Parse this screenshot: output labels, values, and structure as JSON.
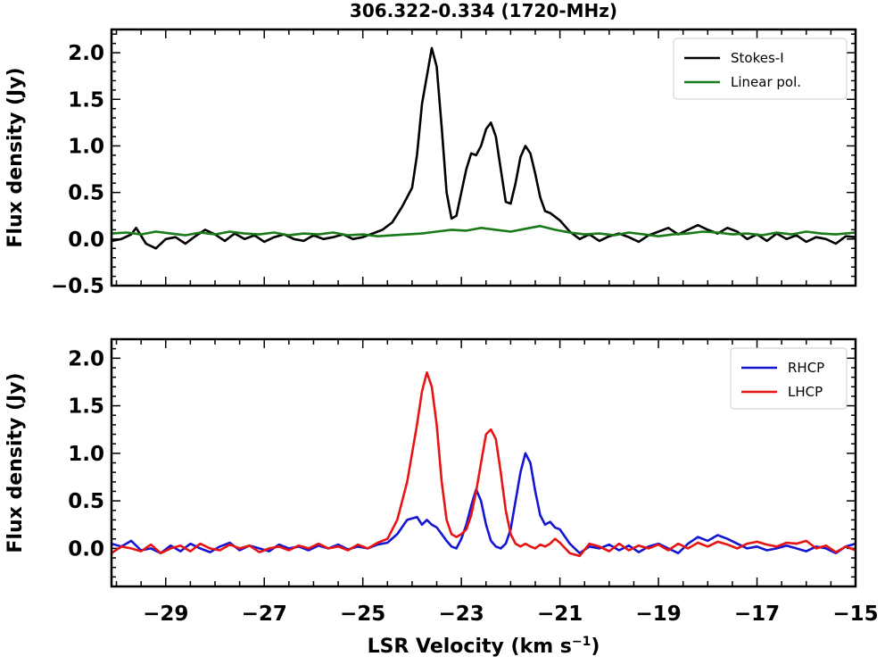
{
  "figure": {
    "title": "306.322-0.334 (1720-MHz)",
    "xlabel": "LSR Velocity (km s",
    "xlabel_sup": "−1",
    "xlabel_end": ")"
  },
  "chart_data": [
    {
      "type": "line",
      "ylabel": "Flux density (Jy)",
      "xlim": [
        -30.1,
        -15
      ],
      "ylim": [
        -0.5,
        2.25
      ],
      "yticks": [
        -0.5,
        0.0,
        0.5,
        1.0,
        1.5,
        2.0
      ],
      "ytick_labels": [
        "−0.5",
        "0.0",
        "0.5",
        "1.0",
        "1.5",
        "2.0"
      ],
      "legend_position": "top-right",
      "series": [
        {
          "name": "Stokes-I",
          "color": "#000000",
          "x": [
            -30.1,
            -29.9,
            -29.7,
            -29.6,
            -29.4,
            -29.2,
            -29.0,
            -28.8,
            -28.6,
            -28.4,
            -28.2,
            -28.0,
            -27.8,
            -27.6,
            -27.4,
            -27.2,
            -27.0,
            -26.8,
            -26.6,
            -26.4,
            -26.2,
            -26.0,
            -25.8,
            -25.6,
            -25.4,
            -25.2,
            -25.0,
            -24.8,
            -24.6,
            -24.4,
            -24.2,
            -24.0,
            -23.9,
            -23.8,
            -23.7,
            -23.6,
            -23.5,
            -23.4,
            -23.3,
            -23.2,
            -23.1,
            -23.0,
            -22.9,
            -22.8,
            -22.7,
            -22.6,
            -22.5,
            -22.4,
            -22.3,
            -22.2,
            -22.1,
            -22.0,
            -21.9,
            -21.8,
            -21.7,
            -21.6,
            -21.5,
            -21.4,
            -21.3,
            -21.2,
            -21.0,
            -20.8,
            -20.6,
            -20.4,
            -20.2,
            -20.0,
            -19.8,
            -19.6,
            -19.4,
            -19.2,
            -19.0,
            -18.8,
            -18.6,
            -18.4,
            -18.2,
            -18.0,
            -17.8,
            -17.6,
            -17.4,
            -17.2,
            -17.0,
            -16.8,
            -16.6,
            -16.4,
            -16.2,
            -16.0,
            -15.8,
            -15.6,
            -15.4,
            -15.2,
            -15.0
          ],
          "y": [
            -0.02,
            0.0,
            0.05,
            0.12,
            -0.05,
            -0.1,
            0.0,
            0.02,
            -0.05,
            0.03,
            0.1,
            0.05,
            -0.02,
            0.06,
            0.0,
            0.04,
            -0.03,
            0.02,
            0.05,
            0.0,
            -0.02,
            0.04,
            0.0,
            0.02,
            0.05,
            0.0,
            0.02,
            0.06,
            0.1,
            0.18,
            0.35,
            0.55,
            0.9,
            1.45,
            1.75,
            2.05,
            1.85,
            1.2,
            0.5,
            0.22,
            0.25,
            0.5,
            0.75,
            0.92,
            0.9,
            1.0,
            1.18,
            1.25,
            1.1,
            0.75,
            0.4,
            0.38,
            0.6,
            0.88,
            1.0,
            0.92,
            0.7,
            0.45,
            0.3,
            0.28,
            0.2,
            0.08,
            0.0,
            0.05,
            -0.02,
            0.03,
            0.06,
            0.02,
            -0.03,
            0.04,
            0.08,
            0.12,
            0.05,
            0.1,
            0.15,
            0.1,
            0.06,
            0.12,
            0.08,
            0.0,
            0.05,
            -0.02,
            0.06,
            0.0,
            0.04,
            -0.03,
            0.02,
            0.0,
            -0.05,
            0.03,
            0.02
          ]
        },
        {
          "name": "Linear pol.",
          "color": "#1a7a1a",
          "x": [
            -30.1,
            -29.8,
            -29.5,
            -29.2,
            -28.9,
            -28.6,
            -28.3,
            -28.0,
            -27.7,
            -27.4,
            -27.1,
            -26.8,
            -26.5,
            -26.2,
            -25.9,
            -25.6,
            -25.3,
            -25.0,
            -24.7,
            -24.4,
            -24.1,
            -23.8,
            -23.5,
            -23.2,
            -22.9,
            -22.6,
            -22.3,
            -22.0,
            -21.7,
            -21.4,
            -21.1,
            -20.8,
            -20.5,
            -20.2,
            -19.9,
            -19.6,
            -19.3,
            -19.0,
            -18.7,
            -18.4,
            -18.1,
            -17.8,
            -17.5,
            -17.2,
            -16.9,
            -16.6,
            -16.3,
            -16.0,
            -15.7,
            -15.4,
            -15.0
          ],
          "y": [
            0.06,
            0.07,
            0.05,
            0.08,
            0.06,
            0.04,
            0.07,
            0.05,
            0.08,
            0.06,
            0.05,
            0.07,
            0.04,
            0.06,
            0.05,
            0.07,
            0.04,
            0.05,
            0.03,
            0.04,
            0.05,
            0.06,
            0.08,
            0.1,
            0.09,
            0.12,
            0.1,
            0.08,
            0.11,
            0.14,
            0.1,
            0.07,
            0.05,
            0.06,
            0.04,
            0.07,
            0.05,
            0.03,
            0.05,
            0.06,
            0.08,
            0.07,
            0.05,
            0.06,
            0.04,
            0.07,
            0.05,
            0.08,
            0.06,
            0.05,
            0.07
          ]
        }
      ]
    },
    {
      "type": "line",
      "ylabel": "Flux density (Jy)",
      "xlim": [
        -30.1,
        -15
      ],
      "ylim": [
        -0.4,
        2.2
      ],
      "yticks": [
        0.0,
        0.5,
        1.0,
        1.5,
        2.0
      ],
      "ytick_labels": [
        "0.0",
        "0.5",
        "1.0",
        "1.5",
        "2.0"
      ],
      "xticks": [
        -29,
        -27,
        -25,
        -23,
        -21,
        -19,
        -17,
        -15
      ],
      "xtick_labels": [
        "−29",
        "−27",
        "−25",
        "−23",
        "−21",
        "−19",
        "−17",
        "−15"
      ],
      "legend_position": "top-right",
      "series": [
        {
          "name": "RHCP",
          "color": "#1515d4",
          "x": [
            -30.1,
            -29.9,
            -29.7,
            -29.5,
            -29.3,
            -29.1,
            -28.9,
            -28.7,
            -28.5,
            -28.3,
            -28.1,
            -27.9,
            -27.7,
            -27.5,
            -27.3,
            -27.1,
            -26.9,
            -26.7,
            -26.5,
            -26.3,
            -26.1,
            -25.9,
            -25.7,
            -25.5,
            -25.3,
            -25.1,
            -24.9,
            -24.7,
            -24.5,
            -24.3,
            -24.1,
            -23.9,
            -23.8,
            -23.7,
            -23.6,
            -23.5,
            -23.4,
            -23.3,
            -23.2,
            -23.1,
            -23.0,
            -22.9,
            -22.8,
            -22.7,
            -22.6,
            -22.5,
            -22.4,
            -22.3,
            -22.2,
            -22.1,
            -22.0,
            -21.9,
            -21.8,
            -21.7,
            -21.6,
            -21.5,
            -21.4,
            -21.3,
            -21.2,
            -21.1,
            -21.0,
            -20.8,
            -20.6,
            -20.4,
            -20.2,
            -20.0,
            -19.8,
            -19.6,
            -19.4,
            -19.2,
            -19.0,
            -18.8,
            -18.6,
            -18.4,
            -18.2,
            -18.0,
            -17.8,
            -17.6,
            -17.4,
            -17.2,
            -17.0,
            -16.8,
            -16.6,
            -16.4,
            -16.2,
            -16.0,
            -15.8,
            -15.6,
            -15.4,
            -15.2,
            -15.0
          ],
          "y": [
            0.05,
            0.02,
            0.08,
            -0.02,
            0.0,
            -0.05,
            0.03,
            -0.03,
            0.05,
            0.0,
            -0.04,
            0.02,
            0.06,
            -0.02,
            0.03,
            0.0,
            -0.03,
            0.04,
            0.0,
            0.02,
            -0.02,
            0.03,
            0.0,
            0.04,
            -0.01,
            0.02,
            0.0,
            0.04,
            0.06,
            0.15,
            0.3,
            0.33,
            0.25,
            0.3,
            0.25,
            0.22,
            0.15,
            0.08,
            0.02,
            0.0,
            0.1,
            0.25,
            0.45,
            0.62,
            0.5,
            0.25,
            0.08,
            0.02,
            0.0,
            0.05,
            0.2,
            0.5,
            0.8,
            1.0,
            0.9,
            0.6,
            0.35,
            0.25,
            0.28,
            0.22,
            0.2,
            0.05,
            -0.05,
            0.02,
            0.0,
            0.04,
            -0.02,
            0.03,
            -0.04,
            0.02,
            0.05,
            0.0,
            -0.05,
            0.05,
            0.12,
            0.08,
            0.14,
            0.1,
            0.05,
            0.0,
            0.02,
            -0.02,
            0.0,
            0.03,
            0.0,
            -0.03,
            0.02,
            0.0,
            -0.05,
            0.02,
            0.05
          ]
        },
        {
          "name": "LHCP",
          "color": "#e81414",
          "x": [
            -30.1,
            -29.9,
            -29.7,
            -29.5,
            -29.3,
            -29.1,
            -28.9,
            -28.7,
            -28.5,
            -28.3,
            -28.1,
            -27.9,
            -27.7,
            -27.5,
            -27.3,
            -27.1,
            -26.9,
            -26.7,
            -26.5,
            -26.3,
            -26.1,
            -25.9,
            -25.7,
            -25.5,
            -25.3,
            -25.1,
            -24.9,
            -24.7,
            -24.5,
            -24.3,
            -24.1,
            -23.9,
            -23.8,
            -23.7,
            -23.6,
            -23.5,
            -23.4,
            -23.3,
            -23.2,
            -23.1,
            -23.0,
            -22.9,
            -22.8,
            -22.7,
            -22.6,
            -22.5,
            -22.4,
            -22.3,
            -22.2,
            -22.1,
            -22.0,
            -21.9,
            -21.8,
            -21.7,
            -21.6,
            -21.5,
            -21.4,
            -21.3,
            -21.2,
            -21.1,
            -21.0,
            -20.8,
            -20.6,
            -20.4,
            -20.2,
            -20.0,
            -19.8,
            -19.6,
            -19.4,
            -19.2,
            -19.0,
            -18.8,
            -18.6,
            -18.4,
            -18.2,
            -18.0,
            -17.8,
            -17.6,
            -17.4,
            -17.2,
            -17.0,
            -16.8,
            -16.6,
            -16.4,
            -16.2,
            -16.0,
            -15.8,
            -15.6,
            -15.4,
            -15.2,
            -15.0
          ],
          "y": [
            -0.05,
            0.02,
            0.0,
            -0.03,
            0.04,
            -0.05,
            0.0,
            0.03,
            -0.03,
            0.05,
            0.0,
            -0.02,
            0.04,
            0.0,
            0.03,
            -0.04,
            0.0,
            0.02,
            -0.02,
            0.03,
            0.0,
            0.05,
            0.0,
            0.02,
            -0.02,
            0.04,
            0.0,
            0.06,
            0.1,
            0.3,
            0.7,
            1.3,
            1.65,
            1.85,
            1.7,
            1.3,
            0.7,
            0.3,
            0.15,
            0.12,
            0.15,
            0.2,
            0.35,
            0.6,
            0.9,
            1.2,
            1.25,
            1.15,
            0.8,
            0.4,
            0.15,
            0.05,
            0.02,
            0.05,
            0.02,
            0.0,
            0.04,
            0.02,
            0.05,
            0.1,
            0.06,
            -0.05,
            -0.08,
            0.05,
            0.02,
            -0.03,
            0.05,
            -0.02,
            0.03,
            0.0,
            0.04,
            -0.02,
            0.05,
            0.0,
            0.06,
            0.02,
            0.07,
            0.04,
            0.0,
            0.05,
            0.07,
            0.04,
            0.02,
            0.06,
            0.05,
            0.08,
            0.0,
            0.03,
            -0.04,
            0.02,
            -0.02
          ]
        }
      ]
    }
  ]
}
